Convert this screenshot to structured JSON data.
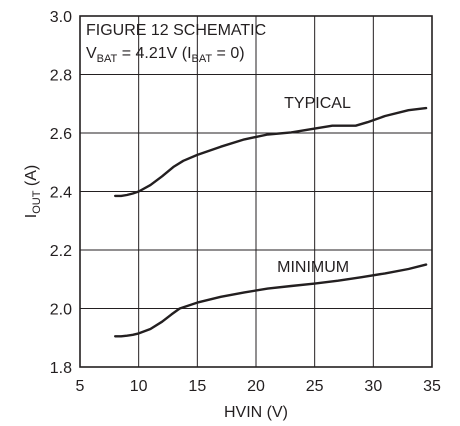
{
  "chart_data": {
    "type": "line",
    "title": "",
    "xlabel": "HVIN (V)",
    "ylabel": {
      "main": "I",
      "sub": "OUT",
      "rest": " (A)"
    },
    "xlim": [
      5,
      35
    ],
    "ylim": [
      1.8,
      3.0
    ],
    "xticks": [
      5,
      10,
      15,
      20,
      25,
      30,
      35
    ],
    "yticks": [
      "1.8",
      "2.0",
      "2.2",
      "2.4",
      "2.6",
      "2.8",
      "3.0"
    ],
    "grid": true,
    "annotation": {
      "line1": "FIGURE 12 SCHEMATIC",
      "line2": [
        {
          "t": "V",
          "sub": false
        },
        {
          "t": "BAT",
          "sub": true
        },
        {
          "t": " = 4.21V (I",
          "sub": false
        },
        {
          "t": "BAT",
          "sub": true
        },
        {
          "t": " = 0)",
          "sub": false
        }
      ]
    },
    "series": [
      {
        "name": "TYPICAL",
        "label_at": [
          22.4,
          2.685
        ],
        "x": [
          8,
          8.5,
          9,
          9.5,
          10,
          11,
          12,
          13,
          13.8,
          15,
          17,
          19,
          21,
          23,
          25,
          26.5,
          28.5,
          29.5,
          31,
          33,
          34.5
        ],
        "y": [
          2.385,
          2.385,
          2.388,
          2.393,
          2.4,
          2.422,
          2.452,
          2.485,
          2.505,
          2.525,
          2.553,
          2.578,
          2.595,
          2.602,
          2.615,
          2.625,
          2.625,
          2.637,
          2.658,
          2.678,
          2.685
        ]
      },
      {
        "name": "MINIMUM",
        "label_at": [
          21.8,
          2.125
        ],
        "x": [
          8,
          8.5,
          9,
          9.5,
          10,
          11,
          12,
          12.8,
          13.5,
          15,
          17,
          19,
          21,
          23,
          25,
          27,
          29,
          31,
          33,
          34.5
        ],
        "y": [
          1.905,
          1.905,
          1.907,
          1.91,
          1.915,
          1.93,
          1.955,
          1.98,
          2.0,
          2.02,
          2.04,
          2.055,
          2.068,
          2.077,
          2.085,
          2.095,
          2.107,
          2.12,
          2.135,
          2.15
        ]
      }
    ]
  }
}
